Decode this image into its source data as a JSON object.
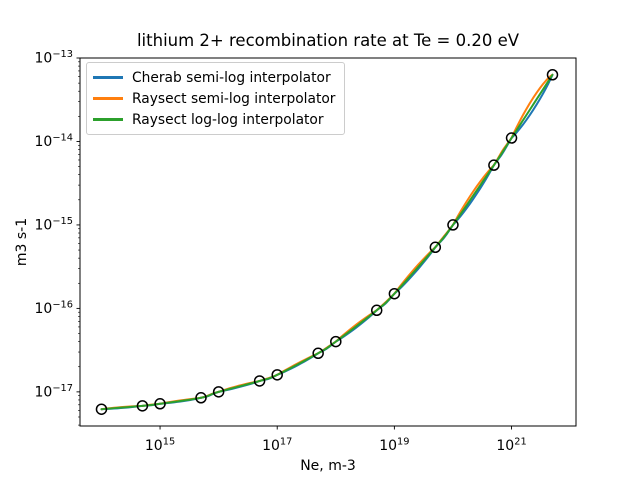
{
  "chart_data": {
    "type": "line",
    "title": "lithium 2+ recombination rate at Te = 0.20 eV",
    "xlabel": "Ne, m-3",
    "ylabel": "m3 s-1",
    "xscale": "log",
    "yscale": "log",
    "xlim": [
      43000000000000.0,
      1.26e+22
    ],
    "ylim": [
      3.9e-18,
      1e-13
    ],
    "grid": false,
    "x": [
      100000000000000.0,
      500000000000000.0,
      1000000000000000.0,
      5000000000000000.0,
      1e+16,
      5e+16,
      1e+17,
      5e+17,
      1e+18,
      5e+18,
      1e+19,
      5e+19,
      1e+20,
      5e+20,
      1e+21,
      5e+21
    ],
    "y": [
      6.2e-18,
      6.8e-18,
      7.2e-18,
      8.5e-18,
      1e-17,
      1.35e-17,
      1.6e-17,
      2.9e-17,
      4e-17,
      9.5e-17,
      1.5e-16,
      5.4e-16,
      1e-15,
      5.2e-15,
      1.1e-14,
      6.3e-14
    ],
    "series": [
      {
        "name": "Cherab semi-log interpolator",
        "color": "#1f77b4",
        "wiggle": -0.8
      },
      {
        "name": "Raysect semi-log interpolator",
        "color": "#ff7f0e",
        "wiggle": 1.0
      },
      {
        "name": "Raysect log-log interpolator",
        "color": "#2ca02c",
        "wiggle": 0.0
      }
    ],
    "marker": {
      "shape": "circle",
      "color": "#000000",
      "fill": "none",
      "radius": 5
    },
    "xticks": {
      "exponents": [
        15,
        17,
        19,
        21
      ]
    },
    "yticks": {
      "exponents": [
        -13,
        -14,
        -15,
        -16,
        -17
      ]
    },
    "legend": {
      "position": "upper-left"
    },
    "axis_color": "#000000"
  }
}
